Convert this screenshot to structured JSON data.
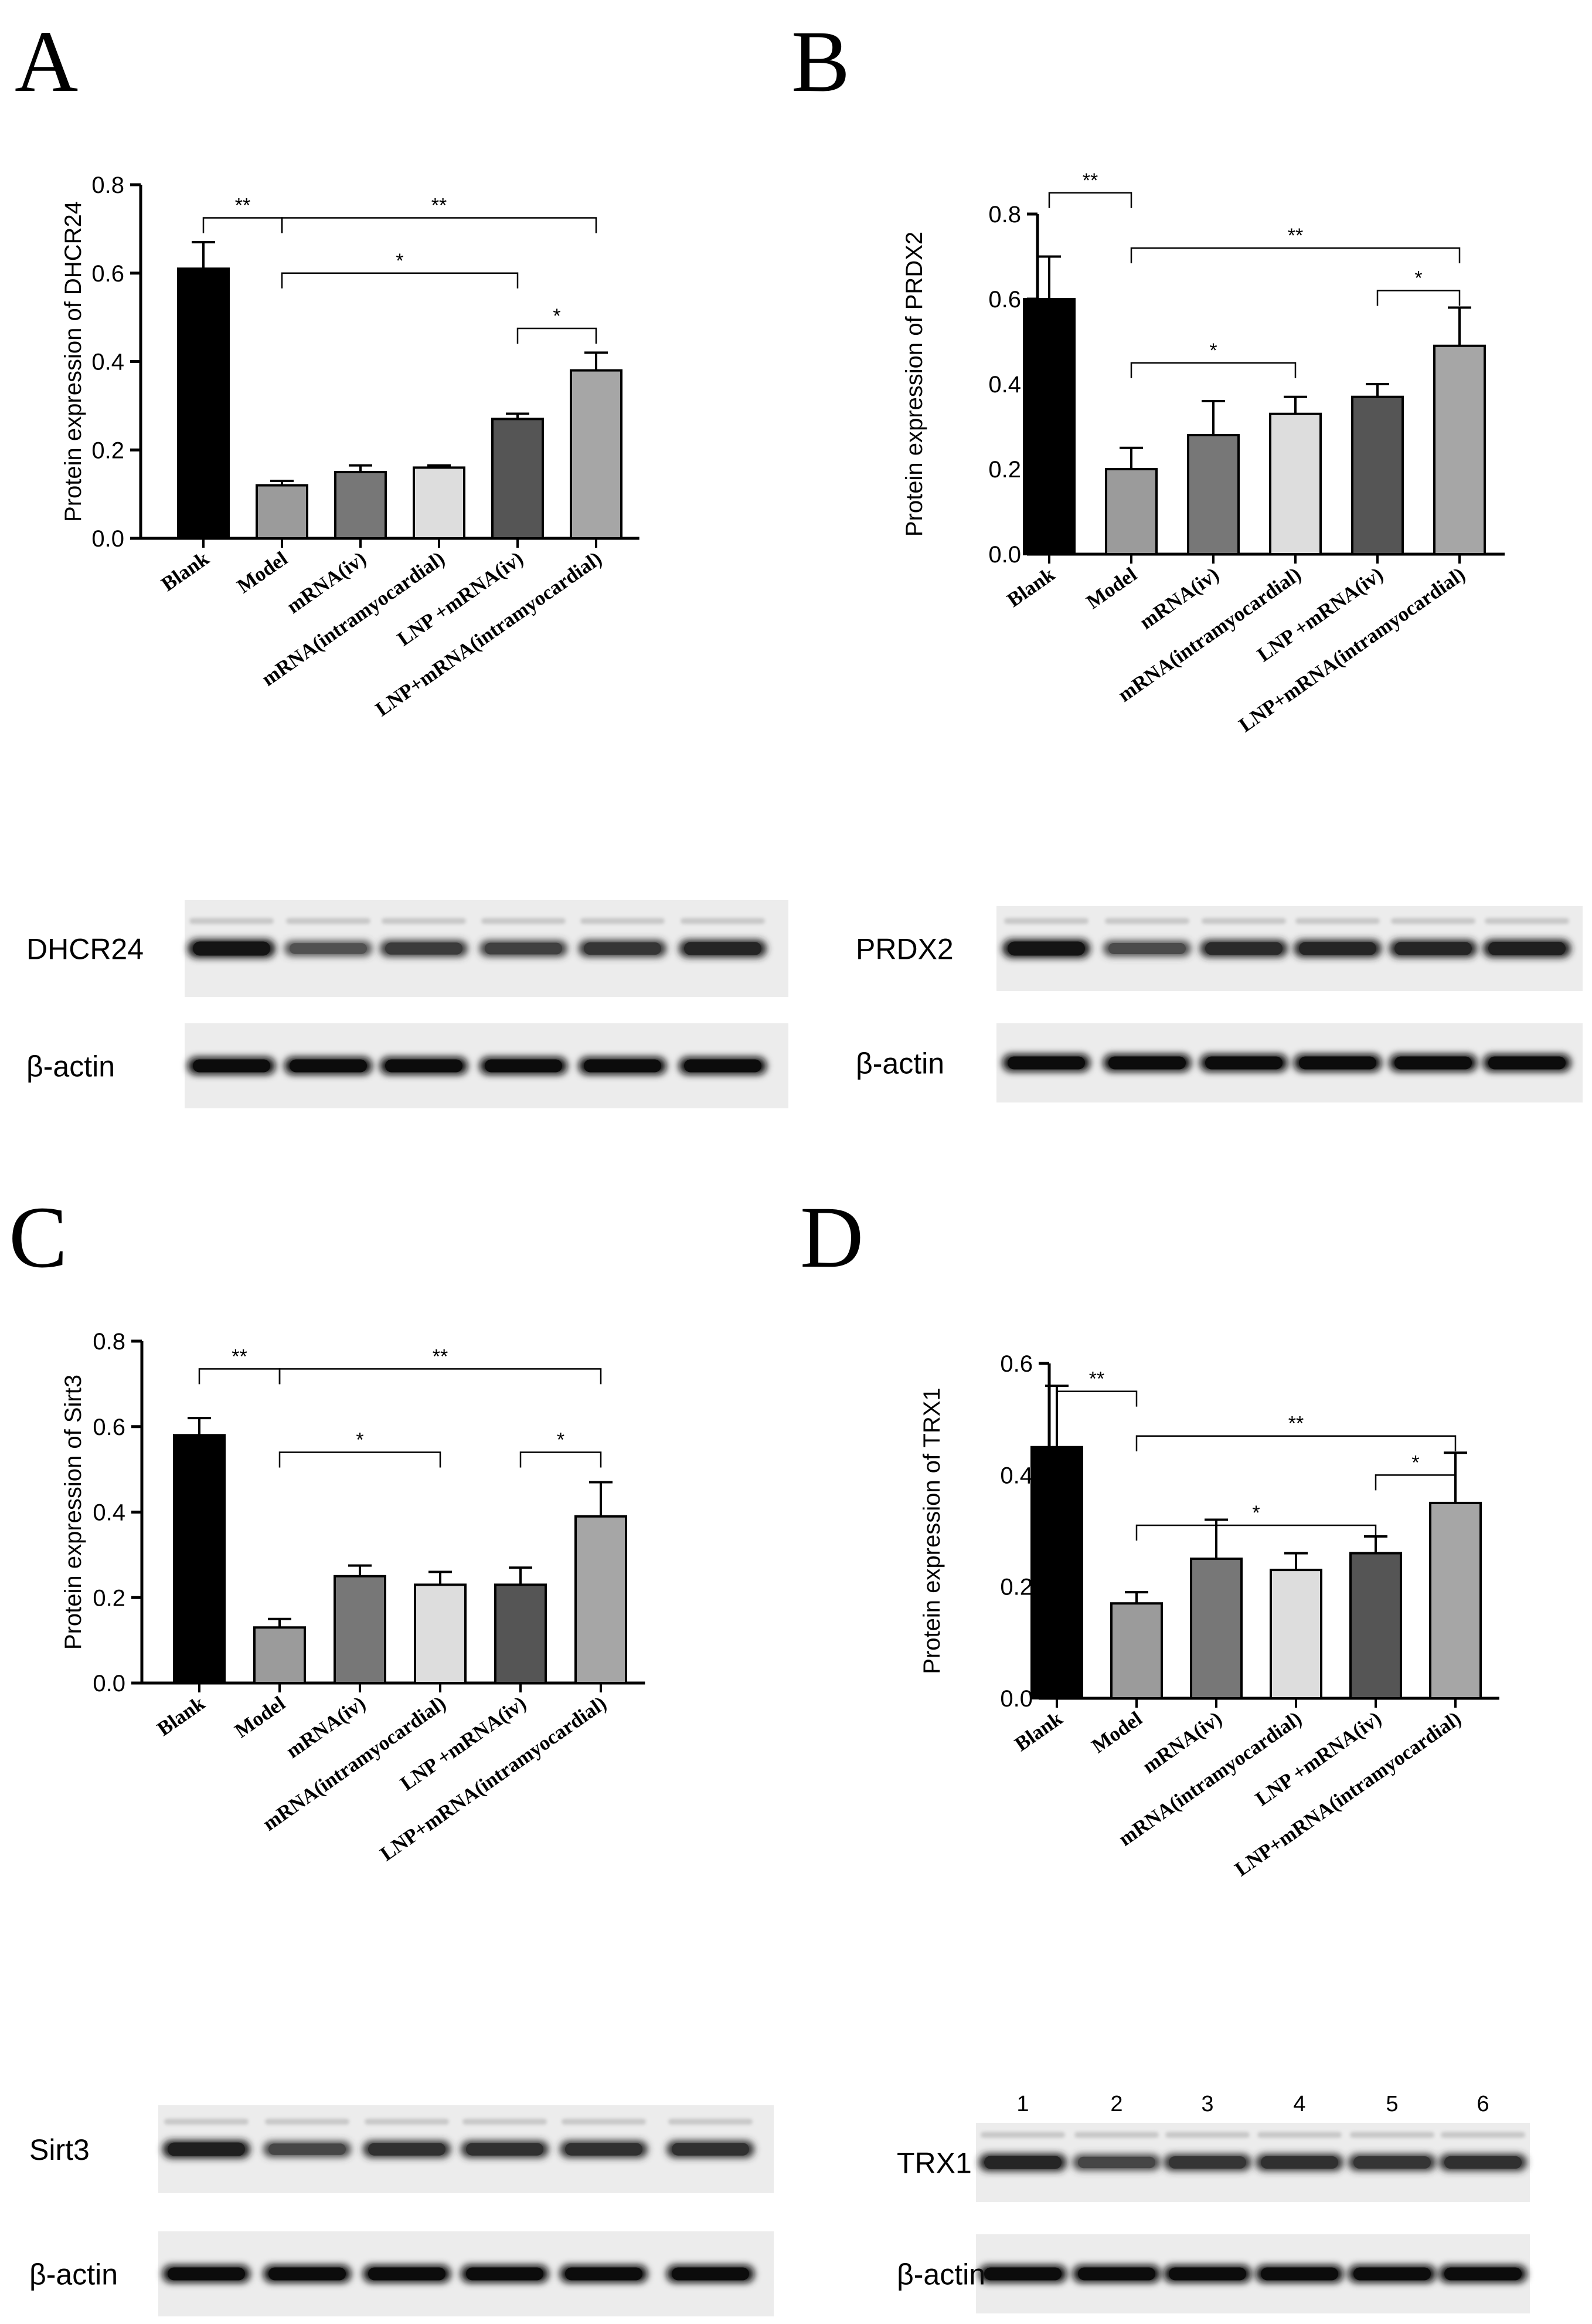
{
  "chart_data": [
    {
      "panel": "A",
      "type": "bar",
      "ylabel": "Protein expression of DHCR24",
      "ylim": [
        0,
        0.8
      ],
      "yticks": [
        "0.0",
        "0.2",
        "0.4",
        "0.6",
        "0.8"
      ],
      "categories": [
        "Blank",
        "Model",
        "mRNA(iv)",
        "mRNA(intramyocardial)",
        "LNP +mRNA(iv)",
        "LNP+mRNA(intramyocardial)"
      ],
      "values": [
        0.61,
        0.12,
        0.15,
        0.16,
        0.27,
        0.38
      ],
      "errors": [
        0.06,
        0.01,
        0.015,
        0.005,
        0.012,
        0.04
      ],
      "colors": [
        "#000000",
        "#9b9b9b",
        "#777777",
        "#dddddd",
        "#555555",
        "#a6a6a6"
      ],
      "significance": [
        {
          "from": 0,
          "to": 1,
          "label": "**"
        },
        {
          "from": 1,
          "to": 5,
          "label": "**"
        },
        {
          "from": 1,
          "to": 4,
          "label": "*"
        },
        {
          "from": 4,
          "to": 5,
          "label": "*"
        }
      ],
      "blots": [
        {
          "label": "DHCR24"
        },
        {
          "label": "β-actin"
        }
      ]
    },
    {
      "panel": "B",
      "type": "bar",
      "ylabel": "Protein expression of PRDX2",
      "ylim": [
        0,
        0.8
      ],
      "yticks": [
        "0.0",
        "0.2",
        "0.4",
        "0.6",
        "0.8"
      ],
      "categories": [
        "Blank",
        "Model",
        "mRNA(iv)",
        "mRNA(intramyocardial)",
        "LNP +mRNA(iv)",
        "LNP+mRNA(intramyocardial)"
      ],
      "values": [
        0.6,
        0.2,
        0.28,
        0.33,
        0.37,
        0.49
      ],
      "errors": [
        0.1,
        0.05,
        0.08,
        0.04,
        0.03,
        0.09
      ],
      "colors": [
        "#000000",
        "#9b9b9b",
        "#777777",
        "#dddddd",
        "#555555",
        "#a6a6a6"
      ],
      "significance": [
        {
          "from": 0,
          "to": 1,
          "label": "**"
        },
        {
          "from": 1,
          "to": 5,
          "label": "**"
        },
        {
          "from": 1,
          "to": 3,
          "label": "*"
        },
        {
          "from": 4,
          "to": 5,
          "label": "*"
        }
      ],
      "blots": [
        {
          "label": "PRDX2"
        },
        {
          "label": "β-actin"
        }
      ]
    },
    {
      "panel": "C",
      "type": "bar",
      "ylabel": "Protein expression of Sirt3",
      "ylim": [
        0,
        0.8
      ],
      "yticks": [
        "0.0",
        "0.2",
        "0.4",
        "0.6",
        "0.8"
      ],
      "categories": [
        "Blank",
        "Model",
        "mRNA(iv)",
        "mRNA(intramyocardial)",
        "LNP +mRNA(iv)",
        "LNP+mRNA(intramyocardial)"
      ],
      "values": [
        0.58,
        0.13,
        0.25,
        0.23,
        0.23,
        0.39
      ],
      "errors": [
        0.04,
        0.02,
        0.025,
        0.03,
        0.04,
        0.08
      ],
      "colors": [
        "#000000",
        "#9b9b9b",
        "#777777",
        "#dddddd",
        "#555555",
        "#a6a6a6"
      ],
      "significance": [
        {
          "from": 0,
          "to": 1,
          "label": "**"
        },
        {
          "from": 1,
          "to": 5,
          "label": "**"
        },
        {
          "from": 1,
          "to": 3,
          "label": "*"
        },
        {
          "from": 4,
          "to": 5,
          "label": "*"
        }
      ],
      "blots": [
        {
          "label": "Sirt3"
        },
        {
          "label": "β-actin"
        }
      ]
    },
    {
      "panel": "D",
      "type": "bar",
      "ylabel": "Protein expression of TRX1",
      "ylim": [
        0,
        0.6
      ],
      "yticks": [
        "0.0",
        "0.2",
        "0.4",
        "0.6"
      ],
      "categories": [
        "Blank",
        "Model",
        "mRNA(iv)",
        "mRNA(intramyocardial)",
        "LNP +mRNA(iv)",
        "LNP+mRNA(intramyocardial)"
      ],
      "values": [
        0.45,
        0.17,
        0.25,
        0.23,
        0.26,
        0.35
      ],
      "errors": [
        0.11,
        0.02,
        0.07,
        0.03,
        0.03,
        0.09
      ],
      "colors": [
        "#000000",
        "#9b9b9b",
        "#777777",
        "#dddddd",
        "#555555",
        "#a6a6a6"
      ],
      "significance": [
        {
          "from": 0,
          "to": 1,
          "label": "**"
        },
        {
          "from": 1,
          "to": 5,
          "label": "**"
        },
        {
          "from": 1,
          "to": 4,
          "label": "*"
        },
        {
          "from": 4,
          "to": 5,
          "label": "*"
        }
      ],
      "lane_numbers": [
        "1",
        "2",
        "3",
        "4",
        "5",
        "6"
      ],
      "blots": [
        {
          "label": "TRX1"
        },
        {
          "label": "β-actin"
        }
      ]
    }
  ],
  "band_intensity": {
    "DHCR24": [
      1.0,
      0.45,
      0.65,
      0.6,
      0.7,
      0.85
    ],
    "PRDX2": [
      1.0,
      0.5,
      0.8,
      0.85,
      0.85,
      0.9
    ],
    "Sirt3": [
      0.9,
      0.55,
      0.75,
      0.75,
      0.75,
      0.75
    ],
    "TRX1": [
      0.85,
      0.55,
      0.7,
      0.75,
      0.7,
      0.75
    ],
    "β-actin": [
      1.0,
      1.0,
      1.0,
      1.0,
      1.0,
      1.0
    ]
  }
}
